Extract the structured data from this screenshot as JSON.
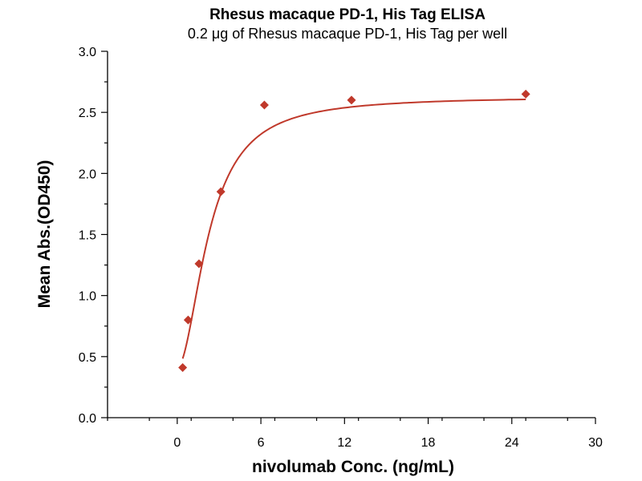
{
  "chart_data": {
    "type": "scatter",
    "title": "Rhesus macaque PD-1, His Tag ELISA",
    "subtitle": "0.2 μg of Rhesus macaque PD-1, His Tag per well",
    "xlabel": "nivolumab Conc. (ng/mL)",
    "ylabel": "Mean Abs.(OD450)",
    "xlim": [
      -5,
      30
    ],
    "ylim": [
      0,
      3.0
    ],
    "x_ticks": [
      "0",
      "6",
      "12",
      "18",
      "24",
      "30"
    ],
    "y_ticks": [
      "0.0",
      "0.5",
      "1.0",
      "1.5",
      "2.0",
      "2.5",
      "3.0"
    ],
    "grid": false,
    "series": [
      {
        "x": [
          0.39,
          0.78,
          1.56,
          3.13,
          6.25,
          12.5,
          25
        ],
        "y": [
          0.41,
          0.8,
          1.26,
          1.85,
          2.56,
          2.6,
          2.65
        ],
        "marker": "diamond",
        "fit": "sigmoidal"
      }
    ],
    "colors": {
      "series": "#c0392b",
      "marker": "#c0392b"
    }
  }
}
